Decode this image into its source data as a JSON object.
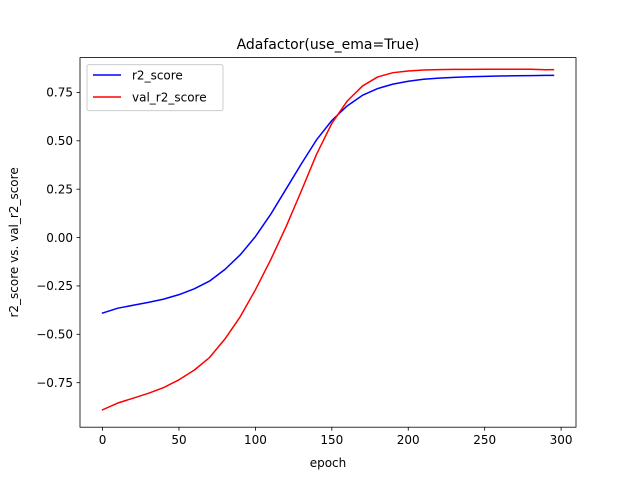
{
  "chart_data": {
    "type": "line",
    "title": "Adafactor(use_ema=True)",
    "xlabel": "epoch",
    "ylabel": "r2_score vs. val_r2_score",
    "xlim": [
      -14.75,
      309.75
    ],
    "ylim": [
      -0.98,
      0.93
    ],
    "xticks": [
      0,
      50,
      100,
      150,
      200,
      250,
      300
    ],
    "yticks": [
      -0.75,
      -0.5,
      -0.25,
      0.0,
      0.25,
      0.5,
      0.75
    ],
    "ytick_labels": [
      "−0.75",
      "−0.50",
      "−0.25",
      "0.00",
      "0.25",
      "0.50",
      "0.75"
    ],
    "grid": false,
    "legend_position": "upper-left",
    "series": [
      {
        "name": "r2_score",
        "color": "#0000ff",
        "x": [
          0,
          10,
          20,
          30,
          40,
          50,
          60,
          70,
          80,
          90,
          100,
          110,
          120,
          130,
          140,
          150,
          160,
          170,
          180,
          190,
          200,
          210,
          220,
          230,
          240,
          250,
          260,
          270,
          280,
          290,
          295
        ],
        "y": [
          -0.39,
          -0.365,
          -0.35,
          -0.335,
          -0.318,
          -0.295,
          -0.265,
          -0.225,
          -0.165,
          -0.09,
          0.005,
          0.12,
          0.25,
          0.38,
          0.505,
          0.605,
          0.68,
          0.735,
          0.77,
          0.793,
          0.808,
          0.818,
          0.824,
          0.828,
          0.831,
          0.833,
          0.835,
          0.836,
          0.837,
          0.838,
          0.838
        ]
      },
      {
        "name": "val_r2_score",
        "color": "#ff0000",
        "x": [
          0,
          10,
          20,
          30,
          40,
          50,
          60,
          70,
          80,
          90,
          100,
          110,
          120,
          130,
          140,
          150,
          160,
          170,
          180,
          190,
          200,
          210,
          220,
          230,
          240,
          250,
          260,
          270,
          280,
          290,
          295
        ],
        "y": [
          -0.89,
          -0.855,
          -0.83,
          -0.805,
          -0.775,
          -0.735,
          -0.685,
          -0.62,
          -0.525,
          -0.41,
          -0.27,
          -0.115,
          0.055,
          0.24,
          0.43,
          0.59,
          0.705,
          0.783,
          0.83,
          0.852,
          0.861,
          0.866,
          0.868,
          0.869,
          0.869,
          0.87,
          0.87,
          0.87,
          0.87,
          0.867,
          0.868
        ]
      }
    ]
  }
}
